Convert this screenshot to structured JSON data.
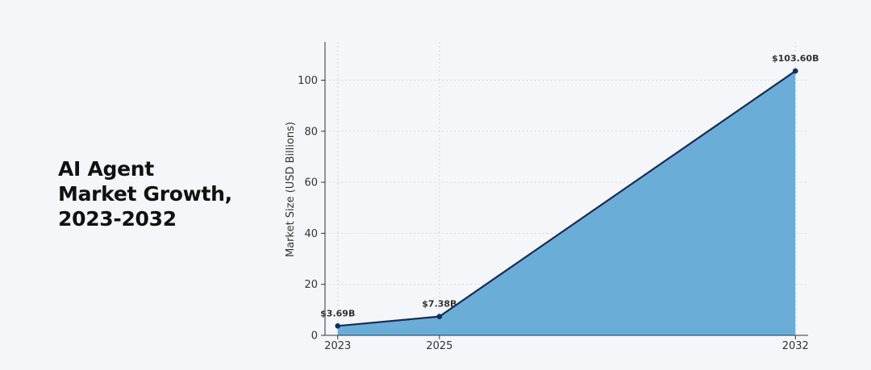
{
  "title_lines": [
    "AI Agent",
    "Market Growth,",
    "2023-2032"
  ],
  "colors": {
    "area": "#6aaed8",
    "line": "#0d2f63",
    "point": "#0d2f63",
    "grid": "#d6d9de"
  },
  "chart_data": {
    "type": "area",
    "title": "AI Agent Market Growth, 2023-2032",
    "x": [
      2023,
      2025,
      2032
    ],
    "x_ticks": [
      "2023",
      "2025",
      "2032"
    ],
    "series": [
      {
        "values": [
          3.69,
          7.38,
          103.6
        ]
      }
    ],
    "data_labels": [
      "$3.69B",
      "$7.38B",
      "$103.60B"
    ],
    "xlabel": "",
    "ylabel": "Market Size (USD Billions)",
    "ylim": [
      0,
      115
    ],
    "xlim": [
      2022.75,
      2032.25
    ],
    "y_ticks": [
      "0",
      "20",
      "40",
      "60",
      "80",
      "100"
    ],
    "grid": true
  }
}
